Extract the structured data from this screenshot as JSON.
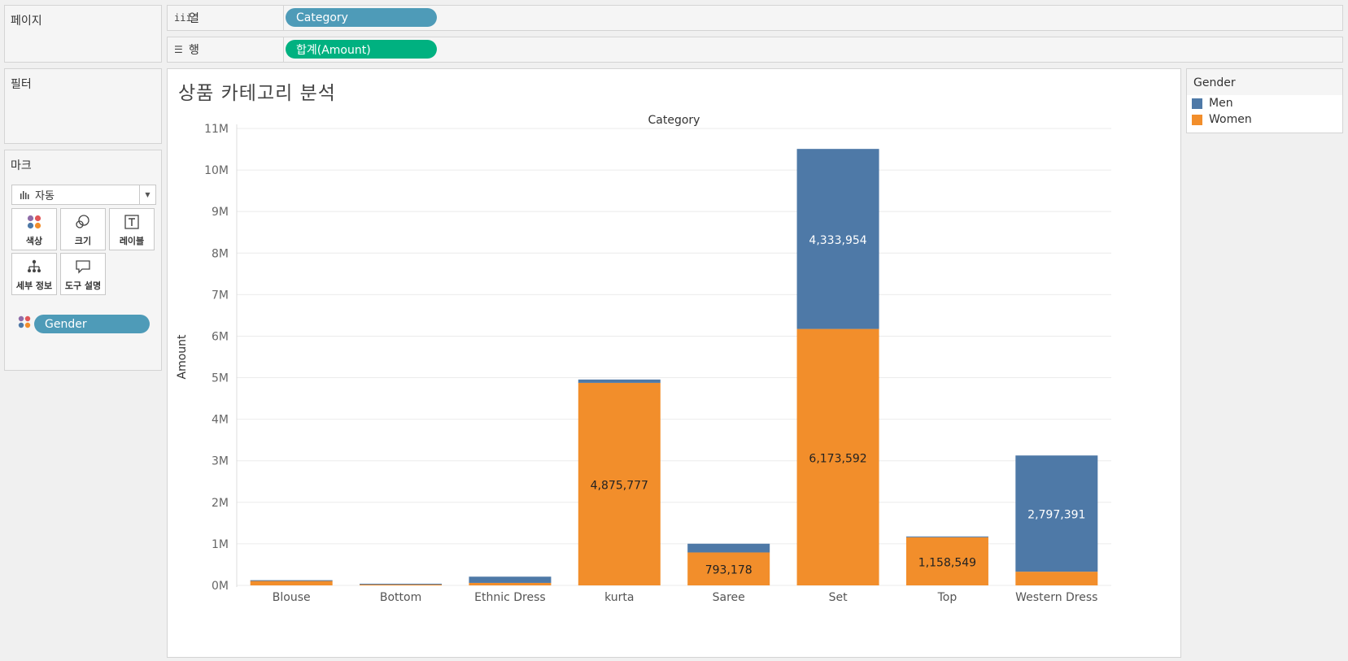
{
  "pages_panel": {
    "title": "페이지"
  },
  "shelves": {
    "columns": {
      "label": "열",
      "icon": "columns-icon",
      "pill": "Category"
    },
    "rows": {
      "label": "행",
      "icon": "rows-icon",
      "pill": "합계(Amount)"
    }
  },
  "filters_panel": {
    "title": "필터"
  },
  "marks_panel": {
    "title": "마크",
    "mark_type": "자동",
    "buttons": {
      "color": "색상",
      "size": "크기",
      "label": "레이블",
      "detail": "세부 정보",
      "tooltip": "도구 설명"
    },
    "gender_pill": "Gender"
  },
  "sheet": {
    "title": "상품 카테고리 분석"
  },
  "legend": {
    "title": "Gender",
    "items": [
      {
        "label": "Men",
        "color": "#4e79a7"
      },
      {
        "label": "Women",
        "color": "#f28e2b"
      }
    ]
  },
  "colors": {
    "men": "#4e79a7",
    "women": "#f28e2b",
    "pill_blue": "#4e9bb8",
    "pill_green": "#00b180"
  },
  "chart_data": {
    "type": "bar",
    "stacked": true,
    "title": "Category",
    "xlabel": "Category",
    "ylabel": "Amount",
    "ylim": [
      0,
      11000000
    ],
    "y_ticks": [
      {
        "value": 0,
        "label": "0M"
      },
      {
        "value": 1000000,
        "label": "1M"
      },
      {
        "value": 2000000,
        "label": "2M"
      },
      {
        "value": 3000000,
        "label": "3M"
      },
      {
        "value": 4000000,
        "label": "4M"
      },
      {
        "value": 5000000,
        "label": "5M"
      },
      {
        "value": 6000000,
        "label": "6M"
      },
      {
        "value": 7000000,
        "label": "7M"
      },
      {
        "value": 8000000,
        "label": "8M"
      },
      {
        "value": 9000000,
        "label": "9M"
      },
      {
        "value": 10000000,
        "label": "10M"
      },
      {
        "value": 11000000,
        "label": "11M"
      }
    ],
    "categories": [
      "Blouse",
      "Bottom",
      "Ethnic Dress",
      "kurta",
      "Saree",
      "Set",
      "Top",
      "Western Dress"
    ],
    "series": [
      {
        "name": "Women",
        "color": "#f28e2b",
        "values": [
          110000,
          25000,
          60000,
          4875777,
          793178,
          6173592,
          1158549,
          330000
        ],
        "labels": [
          null,
          null,
          null,
          "4,875,777",
          "793,178",
          "6,173,592",
          "1,158,549",
          null
        ]
      },
      {
        "name": "Men",
        "color": "#4e79a7",
        "values": [
          15000,
          15000,
          150000,
          80000,
          210000,
          4333954,
          20000,
          2797391
        ],
        "labels": [
          null,
          null,
          null,
          null,
          null,
          "4,333,954",
          null,
          "2,797,391"
        ]
      }
    ]
  }
}
